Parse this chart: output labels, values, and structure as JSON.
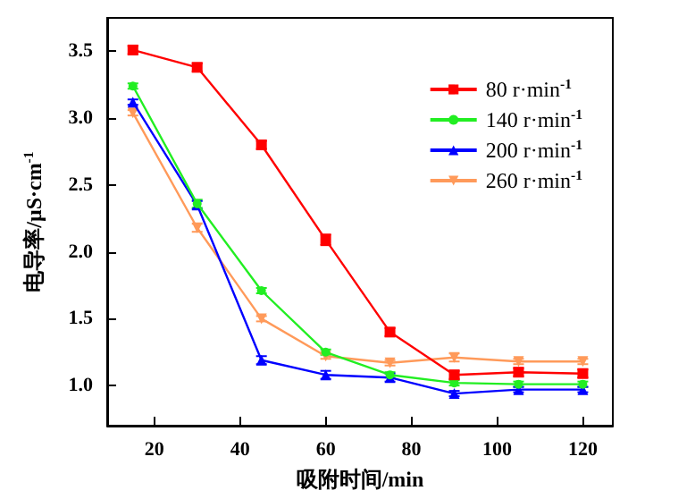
{
  "chart_data": {
    "type": "line",
    "xlabel": "吸附时间/min",
    "ylabel": "电导率/μS·cm$^{-1}$",
    "x": [
      15,
      30,
      45,
      60,
      75,
      90,
      105,
      120
    ],
    "series": [
      {
        "name": "80 r·min$^{-1}$",
        "color": "#ff0000",
        "marker": "square",
        "values": [
          3.51,
          3.38,
          2.8,
          2.09,
          1.4,
          1.08,
          1.1,
          1.09
        ],
        "errors": [
          0.03,
          0.03,
          0.03,
          0.04,
          0.03,
          0.03,
          0.03,
          0.03
        ]
      },
      {
        "name": "140 r·min$^{-1}$",
        "color": "#22ee22",
        "marker": "circle",
        "values": [
          3.24,
          2.36,
          1.71,
          1.25,
          1.08,
          1.02,
          1.01,
          1.01
        ],
        "errors": [
          0.02,
          0.03,
          0.02,
          0.02,
          0.02,
          0.02,
          0.02,
          0.02
        ]
      },
      {
        "name": "200 r·min$^{-1}$",
        "color": "#0000ff",
        "marker": "triangle",
        "values": [
          3.12,
          2.35,
          1.19,
          1.08,
          1.06,
          0.94,
          0.97,
          0.97
        ],
        "errors": [
          0.02,
          0.03,
          0.03,
          0.03,
          0.03,
          0.02,
          0.02,
          0.02
        ]
      },
      {
        "name": "260 r·min$^{-1}$",
        "color": "#ff9a5a",
        "marker": "triangle_down",
        "values": [
          3.04,
          2.18,
          1.5,
          1.22,
          1.17,
          1.21,
          1.18,
          1.18
        ],
        "errors": [
          0.02,
          0.03,
          0.02,
          0.02,
          0.02,
          0.03,
          0.02,
          0.02
        ]
      }
    ],
    "xlim": [
      9,
      127
    ],
    "xticks": [
      20,
      40,
      60,
      80,
      100,
      120
    ],
    "ylim": [
      0.7,
      3.75
    ],
    "yticks": [
      {
        "value": 1,
        "label": "1.0"
      },
      {
        "value": 1.5,
        "label": "1.5"
      },
      {
        "value": 2,
        "label": "2.0"
      },
      {
        "value": 2.5,
        "label": "2.5"
      },
      {
        "value": 3,
        "label": "3.0"
      },
      {
        "value": 3.5,
        "label": "3.5"
      }
    ],
    "legend": "top right",
    "grid": false
  }
}
